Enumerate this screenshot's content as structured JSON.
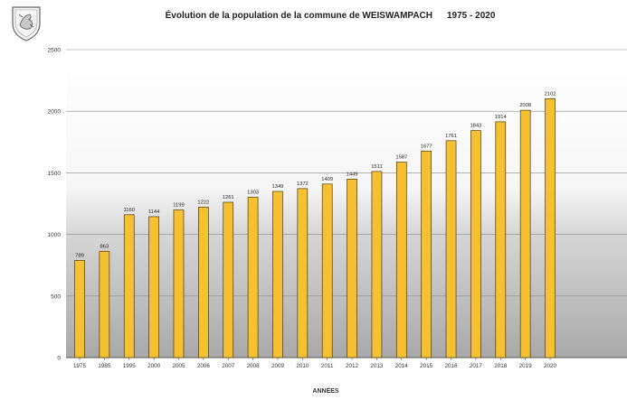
{
  "chart_data": {
    "type": "bar",
    "title": "Évolution de la population de la commune de WEISWAMPACH",
    "period": "1975 - 2020",
    "xlabel": "ANNÉES",
    "ylabel": "",
    "ylim": [
      0,
      2500
    ],
    "yticks": [
      0,
      500,
      1000,
      1500,
      2000,
      2500
    ],
    "categories": [
      "1975",
      "1985",
      "1995",
      "2000",
      "2005",
      "2006",
      "2007",
      "2008",
      "2009",
      "2010",
      "2011",
      "2012",
      "2013",
      "2014",
      "2015",
      "2016",
      "2017",
      "2018",
      "2019",
      "2020"
    ],
    "values": [
      789,
      863,
      1160,
      1144,
      1199,
      1222,
      1261,
      1303,
      1349,
      1372,
      1409,
      1449,
      1511,
      1587,
      1677,
      1761,
      1843,
      1914,
      2008,
      2102
    ],
    "data_labels": true,
    "grid": true,
    "legend": "none",
    "colors": {
      "bar": "#f5c133",
      "bar_edge": "#4a3a10",
      "plot_bg_top": "#ffffff",
      "plot_bg_bottom": "#a9a9a9"
    }
  }
}
